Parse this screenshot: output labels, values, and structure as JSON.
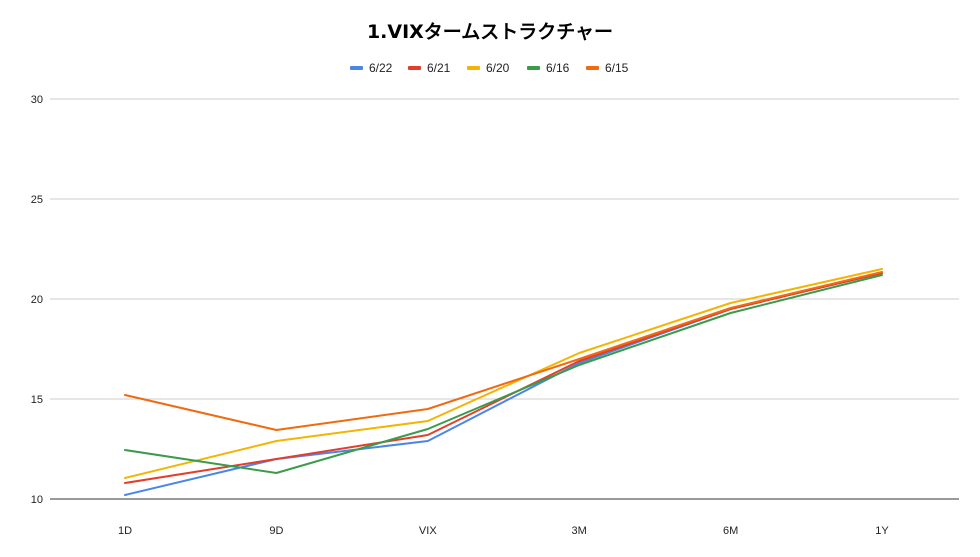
{
  "chart_data": {
    "type": "line",
    "title": "1.VIXタームストラクチャー",
    "xlabel": "",
    "ylabel": "",
    "categories": [
      "1D",
      "9D",
      "VIX",
      "3M",
      "6M",
      "1Y"
    ],
    "ylim": [
      10,
      30
    ],
    "yticks": [
      10,
      15,
      20,
      25,
      30
    ],
    "grid": true,
    "legend_position": "top",
    "series": [
      {
        "name": "6/22",
        "color": "#4a86e8",
        "values": [
          10.2,
          12.0,
          12.9,
          16.8,
          19.5,
          21.3
        ]
      },
      {
        "name": "6/21",
        "color": "#e33e2b",
        "values": [
          10.8,
          12.0,
          13.2,
          16.9,
          19.5,
          21.3
        ]
      },
      {
        "name": "6/20",
        "color": "#f4b400",
        "values": [
          11.05,
          12.9,
          13.9,
          17.3,
          19.8,
          21.5
        ]
      },
      {
        "name": "6/16",
        "color": "#3a9c4a",
        "values": [
          12.45,
          11.3,
          13.5,
          16.7,
          19.3,
          21.2
        ]
      },
      {
        "name": "6/15",
        "color": "#f06a0f",
        "values": [
          15.2,
          13.45,
          14.5,
          17.0,
          19.55,
          21.35
        ]
      }
    ]
  }
}
